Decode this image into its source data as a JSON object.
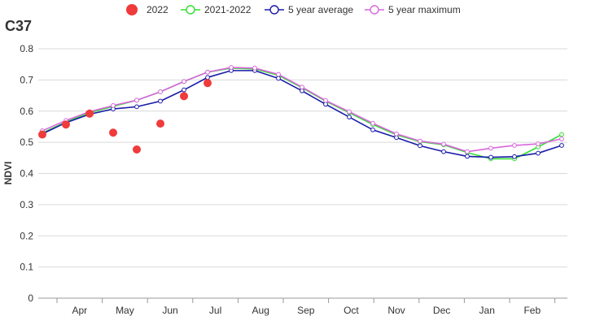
{
  "chart_data": {
    "type": "line",
    "title": "C37",
    "xlabel": "",
    "ylabel": "NDVI",
    "ylim": [
      0,
      0.8
    ],
    "yticks": [
      "0",
      "0.1",
      "0.2",
      "0.3",
      "0.4",
      "0.5",
      "0.6",
      "0.7",
      "0.8"
    ],
    "month_labels": [
      "Apr",
      "May",
      "Jun",
      "Jul",
      "Aug",
      "Sep",
      "Oct",
      "Nov",
      "Dec",
      "Jan",
      "Feb"
    ],
    "grid": true,
    "legend_position": "top",
    "legend": [
      "2022",
      "2021-2022",
      "5 year average",
      "5 year maximum"
    ],
    "series": [
      {
        "name": "2022",
        "style": "dots",
        "color": "#ef3b3b",
        "x": [
          0,
          1,
          2,
          3,
          4,
          5,
          6,
          7
        ],
        "values": [
          0.525,
          0.557,
          0.592,
          0.531,
          0.477,
          0.56,
          0.648,
          0.69
        ]
      },
      {
        "name": "2021-2022",
        "style": "line-markers",
        "color": "#33dd33",
        "x": [
          0,
          1,
          2,
          3,
          4,
          5,
          6,
          7,
          8,
          9,
          10,
          11,
          12,
          13,
          14,
          15,
          16,
          17,
          18,
          19,
          20,
          21,
          22
        ],
        "values": [
          0.53,
          0.565,
          0.595,
          0.615,
          0.635,
          0.662,
          0.695,
          0.725,
          0.738,
          0.735,
          0.715,
          0.675,
          0.632,
          0.595,
          0.557,
          0.524,
          0.502,
          0.492,
          0.467,
          0.447,
          0.447,
          0.485,
          0.525
        ]
      },
      {
        "name": "5 year average",
        "style": "line-markers",
        "color": "#1a1aaa",
        "x": [
          0,
          1,
          2,
          3,
          4,
          5,
          6,
          7,
          8,
          9,
          10,
          11,
          12,
          13,
          14,
          15,
          16,
          17,
          18,
          19,
          20,
          21,
          22
        ],
        "values": [
          0.527,
          0.563,
          0.59,
          0.607,
          0.614,
          0.632,
          0.668,
          0.708,
          0.73,
          0.73,
          0.705,
          0.665,
          0.622,
          0.581,
          0.54,
          0.515,
          0.489,
          0.47,
          0.455,
          0.452,
          0.454,
          0.465,
          0.49
        ]
      },
      {
        "name": "5 year maximum",
        "style": "line-markers",
        "color": "#d966dd",
        "x": [
          0,
          1,
          2,
          3,
          4,
          5,
          6,
          7,
          8,
          9,
          10,
          11,
          12,
          13,
          14,
          15,
          16,
          17,
          18,
          19,
          20,
          21,
          22
        ],
        "values": [
          0.537,
          0.57,
          0.598,
          0.618,
          0.635,
          0.662,
          0.695,
          0.725,
          0.74,
          0.738,
          0.718,
          0.677,
          0.634,
          0.598,
          0.561,
          0.527,
          0.504,
          0.494,
          0.47,
          0.481,
          0.49,
          0.495,
          0.511
        ]
      }
    ]
  }
}
